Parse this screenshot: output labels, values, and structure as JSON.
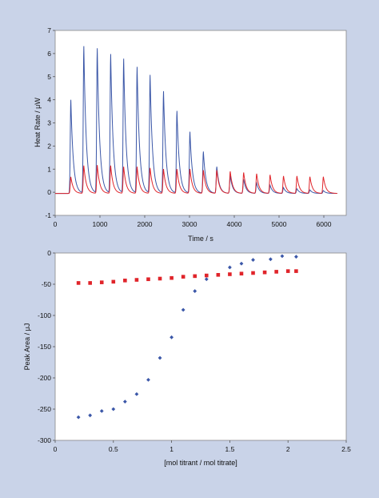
{
  "colors": {
    "background": "#c9d3e8",
    "plot_bg": "#ffffff",
    "series_blue": "#3b57a8",
    "series_red": "#e0242a"
  },
  "chart_data": [
    {
      "type": "line",
      "title": "",
      "xlabel": "Time / s",
      "ylabel": "Heat Rate / μW",
      "xlim": [
        0,
        6500
      ],
      "ylim": [
        -1,
        7
      ],
      "xticks": [
        0,
        1000,
        2000,
        3000,
        4000,
        5000,
        6000
      ],
      "yticks": [
        -1,
        0,
        1,
        2,
        3,
        4,
        5,
        6,
        7
      ],
      "grid": false,
      "legend": "none",
      "baseline": 0,
      "series": [
        {
          "color": "#3b57a8",
          "peak_times": [
            350,
            640,
            940,
            1240,
            1530,
            1830,
            2120,
            2420,
            2720,
            3010,
            3310,
            3610,
            3910,
            4210,
            4500,
            4800,
            5100,
            5400,
            5690,
            5990
          ],
          "peak_values": [
            4.05,
            6.35,
            6.25,
            6.0,
            5.8,
            5.45,
            5.1,
            4.4,
            3.55,
            2.65,
            1.8,
            1.15,
            0.75,
            0.6,
            0.45,
            0.35,
            0.25,
            0.2,
            0.15,
            0.12
          ]
        },
        {
          "color": "#e0242a",
          "peak_times": [
            350,
            640,
            940,
            1240,
            1530,
            1830,
            2120,
            2420,
            2720,
            3010,
            3310,
            3610,
            3910,
            4210,
            4500,
            4800,
            5100,
            5400,
            5690,
            5990
          ],
          "peak_values": [
            0.72,
            1.2,
            1.22,
            1.2,
            1.15,
            1.15,
            1.1,
            1.05,
            1.05,
            1.05,
            1.0,
            1.0,
            0.95,
            0.9,
            0.85,
            0.8,
            0.75,
            0.75,
            0.72,
            0.72
          ]
        }
      ]
    },
    {
      "type": "scatter",
      "title": "",
      "xlabel": "[mol titrant / mol titrate]",
      "ylabel": "Peak Area / μJ",
      "xlim": [
        0,
        2.5
      ],
      "ylim": [
        -300,
        0
      ],
      "xticks": [
        0,
        0.5,
        1,
        1.5,
        2,
        2.5
      ],
      "xtick_labels": [
        "0",
        "0.5",
        "1",
        "1.5",
        "2",
        "2.5"
      ],
      "yticks": [
        -300,
        -250,
        -200,
        -150,
        -100,
        -50,
        0
      ],
      "grid": false,
      "legend": "none",
      "series": [
        {
          "color": "#3b57a8",
          "marker": "diamond",
          "x": [
            0.2,
            0.3,
            0.4,
            0.5,
            0.6,
            0.7,
            0.8,
            0.9,
            1.0,
            1.1,
            1.2,
            1.3,
            1.5,
            1.6,
            1.7,
            1.85,
            1.95,
            2.07
          ],
          "y": [
            -263,
            -260,
            -253,
            -250,
            -238,
            -226,
            -203,
            -168,
            -135,
            -91,
            -61,
            -42,
            -23,
            -17,
            -11,
            -10,
            -5,
            -6
          ]
        },
        {
          "color": "#e0242a",
          "marker": "square",
          "x": [
            0.2,
            0.3,
            0.4,
            0.5,
            0.6,
            0.7,
            0.8,
            0.9,
            1.0,
            1.1,
            1.2,
            1.3,
            1.4,
            1.5,
            1.6,
            1.7,
            1.8,
            1.9,
            2.0,
            2.07
          ],
          "y": [
            -48,
            -48,
            -47,
            -46,
            -44,
            -43,
            -42,
            -41,
            -40,
            -38,
            -37,
            -36,
            -35,
            -34,
            -33,
            -32,
            -31,
            -30,
            -29,
            -29
          ]
        }
      ]
    }
  ]
}
